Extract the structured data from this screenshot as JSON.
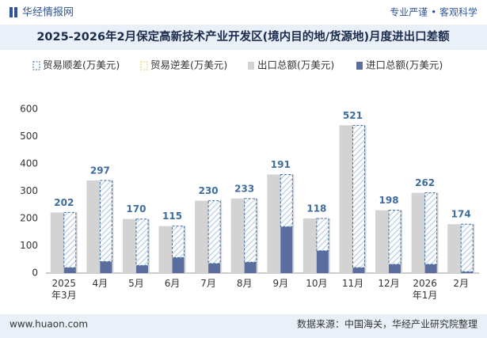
{
  "header": {
    "brand": "华经情报网",
    "slogan": "专业严谨 • 客观科学"
  },
  "footer": {
    "website": "www.huaon.com",
    "source": "数据来源：中国海关，华经产业研究院整理"
  },
  "chart_data": {
    "type": "bar",
    "title": "2025-2026年2月保定高新技术产业开发区(境内目的地/货源地)月度进出口差额",
    "categories": [
      "2025年3月",
      "4月",
      "5月",
      "6月",
      "7月",
      "8月",
      "9月",
      "10月",
      "11月",
      "12月",
      "2026年1月",
      "2月"
    ],
    "series": [
      {
        "name": "贸易顺差(万美元)",
        "color": "#3e6c9e",
        "values": [
          202,
          297,
          170,
          115,
          230,
          233,
          191,
          118,
          521,
          198,
          262,
          174
        ]
      },
      {
        "name": "贸易逆差(万美元)",
        "color": "#e8c94a",
        "values": [
          null,
          null,
          null,
          null,
          null,
          null,
          null,
          null,
          null,
          null,
          null,
          null
        ]
      },
      {
        "name": "出口总额(万美元)",
        "color": "#d3d3d3",
        "values": [
          222,
          339,
          198,
          172,
          265,
          273,
          361,
          200,
          541,
          230,
          294,
          179
        ]
      },
      {
        "name": "进口总额(万美元)",
        "color": "#5b6c9e",
        "values": [
          20,
          42,
          28,
          57,
          35,
          40,
          170,
          82,
          20,
          32,
          32,
          5
        ]
      }
    ],
    "ylim": [
      0,
      600
    ],
    "yticks": [
      0,
      100,
      200,
      300,
      400,
      500,
      600
    ],
    "grid": false
  }
}
